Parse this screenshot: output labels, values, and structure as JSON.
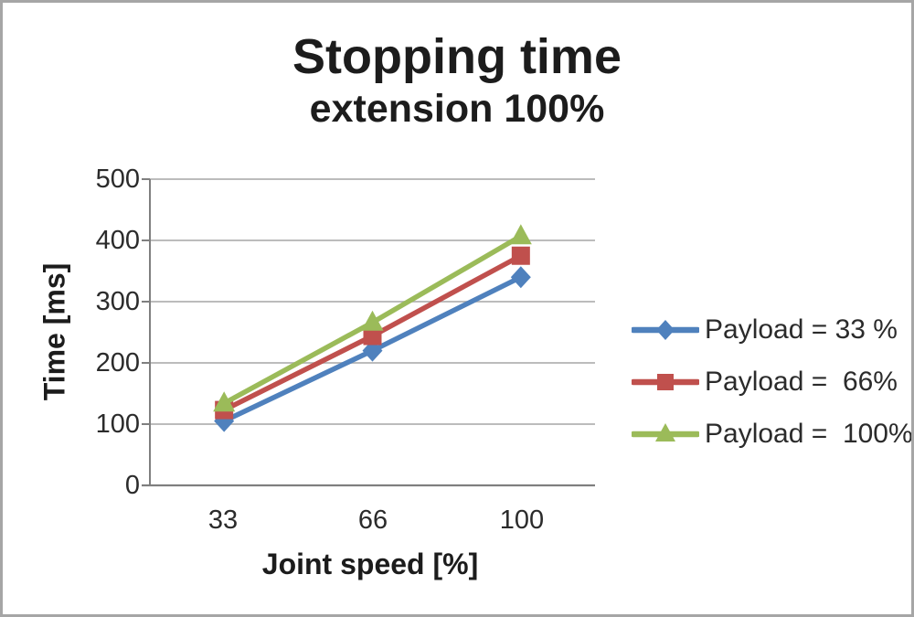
{
  "title": {
    "line1": "Stopping time",
    "line2": "extension 100%"
  },
  "chart_data": {
    "type": "line",
    "title": "Stopping time extension 100%",
    "title_lines": [
      "Stopping time",
      "extension 100%"
    ],
    "categories": [
      33,
      66,
      100
    ],
    "series": [
      {
        "name": "Payload = 33 %",
        "marker": "diamond",
        "color": "#4F81BD",
        "values": [
          105,
          220,
          340
        ]
      },
      {
        "name": "Payload =  66%",
        "marker": "square",
        "color": "#C0504D",
        "values": [
          123,
          244,
          375
        ]
      },
      {
        "name": "Payload =  100%",
        "marker": "triangle",
        "color": "#9BBB59",
        "values": [
          134,
          266,
          407
        ]
      }
    ],
    "xlabel": "Joint speed [%]",
    "ylabel": "Time [ms]",
    "ylim": [
      0,
      500
    ],
    "yticks": [
      0,
      100,
      200,
      300,
      400,
      500
    ],
    "xticks": [
      "33",
      "66",
      "100"
    ],
    "grid": "horizontal",
    "legend_position": "right"
  },
  "colors": {
    "gridline": "#b3b3b3",
    "axis": "#7f7f7f",
    "text": "#2b2b2b",
    "title_text": "#1c1c1c",
    "frame_border": "#a6a6a6",
    "background": "#ffffff"
  }
}
